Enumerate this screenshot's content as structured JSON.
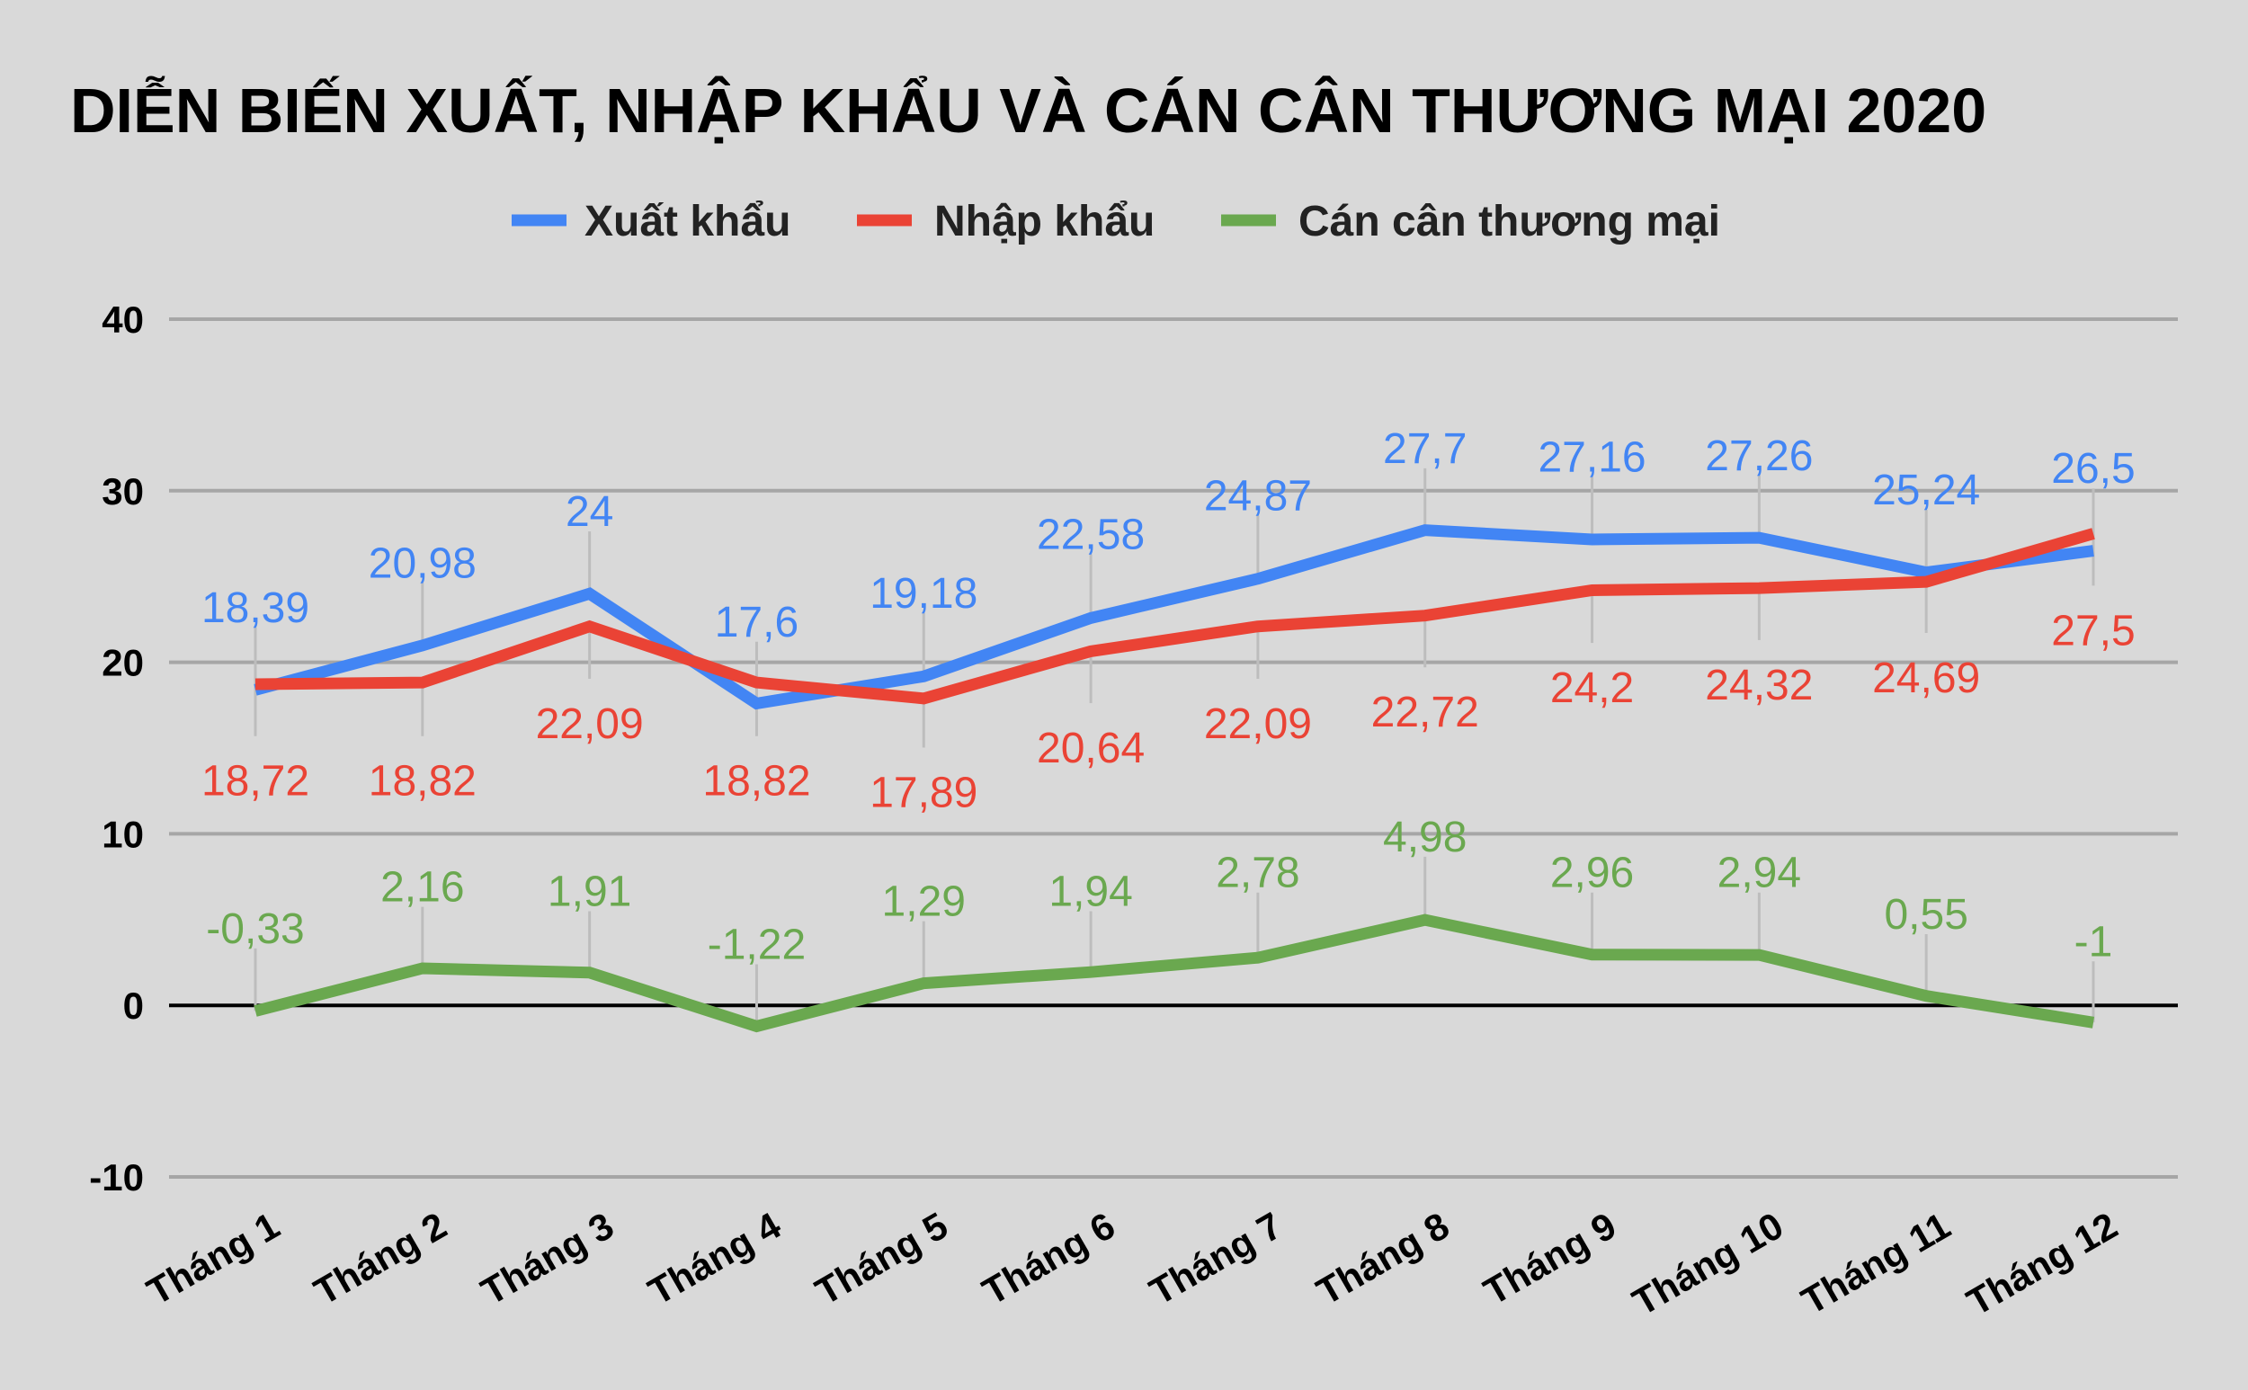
{
  "chart_data": {
    "type": "line",
    "title": "DIỄN BIẾN XUẤT, NHẬP KHẨU VÀ CÁN CÂN THƯƠNG MẠI 2020",
    "xlabel": "",
    "ylabel": "",
    "categories": [
      "Tháng 1",
      "Tháng 2",
      "Tháng 3",
      "Tháng 4",
      "Tháng 5",
      "Tháng 6",
      "Tháng 7",
      "Tháng 8",
      "Tháng 9",
      "Tháng 10",
      "Tháng 11",
      "Tháng 12"
    ],
    "ylim": [
      -10,
      40
    ],
    "yticks": [
      40,
      30,
      20,
      10,
      0,
      -10
    ],
    "grid": true,
    "legend_position": "top",
    "series": [
      {
        "name": "Xuất khẩu",
        "color": "#4285f4",
        "values": [
          18.39,
          20.98,
          24,
          17.6,
          19.18,
          22.58,
          24.87,
          27.7,
          27.16,
          27.26,
          25.24,
          26.5
        ],
        "labels": [
          "18,39",
          "20,98",
          "24",
          "17,6",
          "19,18",
          "22,58",
          "24,87",
          "27,7",
          "27,16",
          "27,26",
          "25,24",
          "26,5"
        ]
      },
      {
        "name": "Nhập khẩu",
        "color": "#ea4335",
        "values": [
          18.72,
          18.82,
          22.09,
          18.82,
          17.89,
          20.64,
          22.09,
          22.72,
          24.2,
          24.32,
          24.69,
          27.5
        ],
        "labels": [
          "18,72",
          "18,82",
          "22,09",
          "18,82",
          "17,89",
          "20,64",
          "22,09",
          "22,72",
          "24,2",
          "24,32",
          "24,69",
          "27,5"
        ]
      },
      {
        "name": "Cán cân thương mại",
        "color": "#6aa84f",
        "values": [
          -0.33,
          2.16,
          1.91,
          -1.22,
          1.29,
          1.94,
          2.78,
          4.98,
          2.96,
          2.94,
          0.55,
          -1
        ],
        "labels": [
          "-0,33",
          "2,16",
          "1,91",
          "-1,22",
          "1,29",
          "1,94",
          "2,78",
          "4,98",
          "2,96",
          "2,94",
          "0,55",
          "-1"
        ]
      }
    ]
  }
}
